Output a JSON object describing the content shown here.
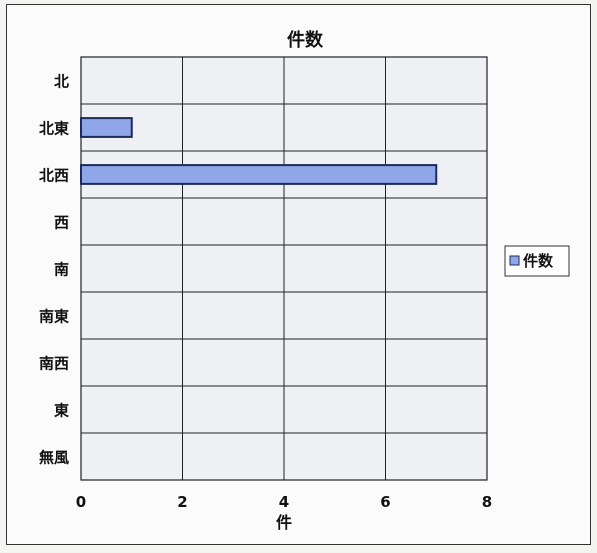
{
  "chart_data": {
    "type": "bar",
    "orientation": "horizontal",
    "title": "件数",
    "xlabel": "件",
    "ylabel": "",
    "categories": [
      "北",
      "北東",
      "北西",
      "西",
      "南",
      "南東",
      "南西",
      "東",
      "無風"
    ],
    "series": [
      {
        "name": "件数",
        "values": [
          0,
          1,
          7,
          0,
          0,
          0,
          0,
          0,
          0
        ]
      }
    ],
    "xlim": [
      0,
      8
    ],
    "xticks": [
      0,
      2,
      4,
      6,
      8
    ],
    "grid": true,
    "legend_position": "right",
    "colors": {
      "bar_fill": "#8fa6e8",
      "bar_stroke": "#1f2a5c",
      "plot_bg": "#eef0f4",
      "grid": "#222222"
    }
  }
}
